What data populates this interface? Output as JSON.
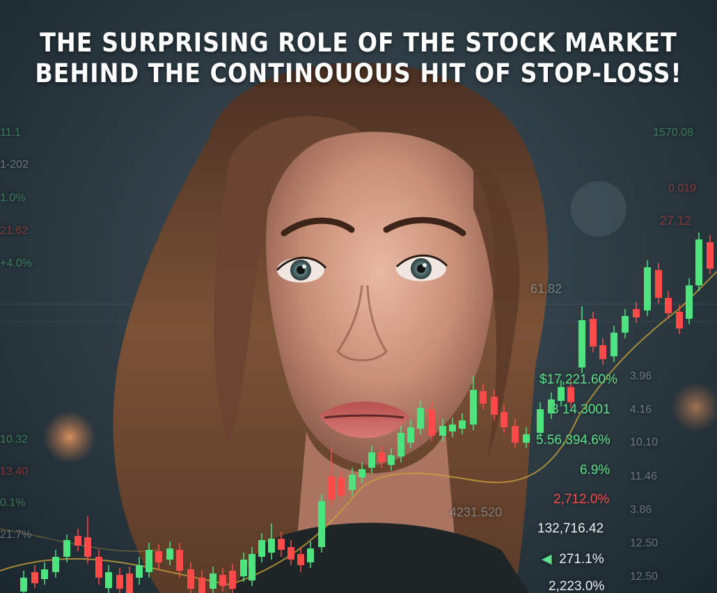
{
  "headline": {
    "line1": "THE SURPRISING ROLE OF THE STOCK MARKET",
    "line2": "BEHIND THE CONTINOUOUS HIT OF STOP-LOSS!"
  },
  "overlay_figures": {
    "pct_1": "$17,221.60%",
    "val_1": "3 14.3001",
    "pct_2": "5.56,394.6%",
    "pct_3": "6.9%",
    "pct_4": "2,712.0%",
    "val_2": "132,716.42",
    "pct_5": "271.1%",
    "pct_6": "2,223.0%",
    "val_3": "4231.520",
    "val_4": "27.12",
    "val_5": "0.019",
    "val_6": "61.82",
    "val_7": "1570.08"
  },
  "left_readouts": [
    "11.1",
    "1-202",
    "1.0%",
    "21.62",
    "+4.0%",
    "10.32",
    "13.40",
    "0.1%",
    "21.7%"
  ],
  "right_readouts": [
    "3.96",
    "4.16",
    "10.10",
    "11.46",
    "3.86",
    "12.50",
    "12.50"
  ],
  "colors": {
    "candle_up": "#4ee37f",
    "candle_down": "#ff4a4a",
    "trend_line": "#c8a23a",
    "text_white": "#ffffff"
  }
}
